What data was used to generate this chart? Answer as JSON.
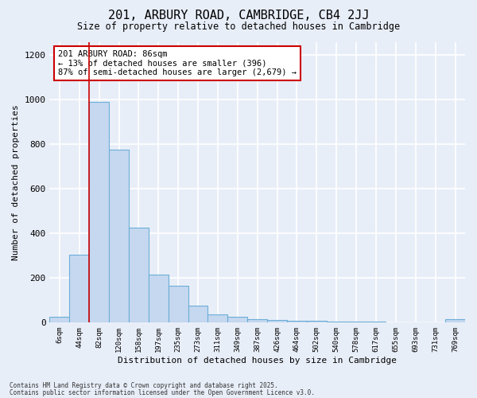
{
  "title1": "201, ARBURY ROAD, CAMBRIDGE, CB4 2JJ",
  "title2": "Size of property relative to detached houses in Cambridge",
  "xlabel": "Distribution of detached houses by size in Cambridge",
  "ylabel": "Number of detached properties",
  "categories": [
    "6sqm",
    "44sqm",
    "82sqm",
    "120sqm",
    "158sqm",
    "197sqm",
    "235sqm",
    "273sqm",
    "311sqm",
    "349sqm",
    "387sqm",
    "426sqm",
    "464sqm",
    "502sqm",
    "540sqm",
    "578sqm",
    "617sqm",
    "655sqm",
    "693sqm",
    "731sqm",
    "769sqm"
  ],
  "bar_heights": [
    25,
    305,
    990,
    775,
    425,
    215,
    165,
    75,
    35,
    25,
    15,
    10,
    8,
    5,
    4,
    3,
    2,
    1,
    1,
    0,
    15
  ],
  "bar_color": "#c5d8f0",
  "bar_edge_color": "#6baed6",
  "vline_x": 1.5,
  "annotation_text": "201 ARBURY ROAD: 86sqm\n← 13% of detached houses are smaller (396)\n87% of semi-detached houses are larger (2,679) →",
  "annotation_box_color": "white",
  "annotation_box_edge_color": "#cc0000",
  "vline_color": "#cc0000",
  "ylim": [
    0,
    1260
  ],
  "yticks": [
    0,
    200,
    400,
    600,
    800,
    1000,
    1200
  ],
  "footer1": "Contains HM Land Registry data © Crown copyright and database right 2025.",
  "footer2": "Contains public sector information licensed under the Open Government Licence v3.0.",
  "bg_color": "#e8eef8",
  "plot_bg_color": "#e8eef8",
  "grid_color": "#ffffff"
}
